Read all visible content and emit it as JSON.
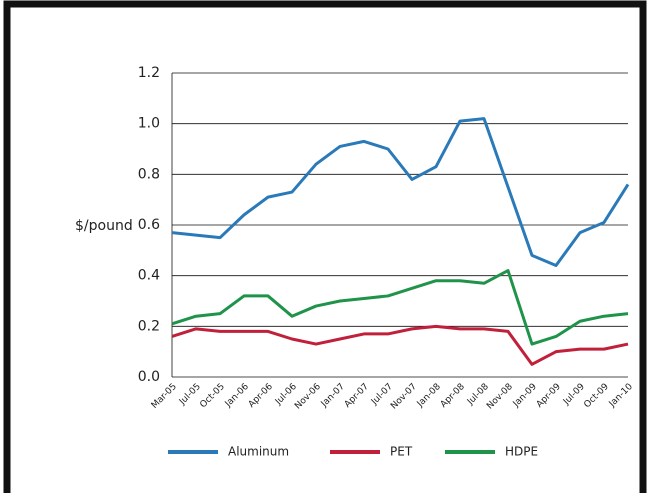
{
  "chart_data": {
    "type": "line",
    "y_label": "$/pound",
    "categories": [
      "Mar-05",
      "Jul-05",
      "Oct-05",
      "Jan-06",
      "Apr-06",
      "Jul-06",
      "Nov-06",
      "Jan-07",
      "Apr-07",
      "Jul-07",
      "Nov-07",
      "Jan-08",
      "Apr-08",
      "Jul-08",
      "Nov-08",
      "Jan-09",
      "Apr-09",
      "Jul-09",
      "Oct-09",
      "Jan-10"
    ],
    "series": [
      {
        "name": "Aluminum",
        "color": "#2a7ab9",
        "values": [
          0.57,
          0.56,
          0.55,
          0.64,
          0.71,
          0.73,
          0.84,
          0.91,
          0.93,
          0.9,
          0.78,
          0.83,
          1.01,
          1.02,
          0.75,
          0.48,
          0.44,
          0.57,
          0.61,
          0.76
        ]
      },
      {
        "name": "PET",
        "color": "#c0203a",
        "values": [
          0.16,
          0.19,
          0.18,
          0.18,
          0.18,
          0.15,
          0.13,
          0.15,
          0.17,
          0.17,
          0.19,
          0.2,
          0.19,
          0.19,
          0.18,
          0.05,
          0.1,
          0.11,
          0.11,
          0.13
        ]
      },
      {
        "name": "HDPE",
        "color": "#20934a",
        "values": [
          0.21,
          0.24,
          0.25,
          0.32,
          0.32,
          0.24,
          0.28,
          0.3,
          0.31,
          0.32,
          0.35,
          0.38,
          0.38,
          0.37,
          0.42,
          0.13,
          0.16,
          0.22,
          0.24,
          0.25
        ]
      }
    ],
    "ylim": [
      0,
      1.2
    ],
    "yticks": [
      {
        "value": 0,
        "label": "0.0"
      },
      0.2,
      0.4,
      0.6,
      0.8,
      {
        "value": 1,
        "label": "1.0"
      },
      1.2
    ],
    "grid": true
  }
}
